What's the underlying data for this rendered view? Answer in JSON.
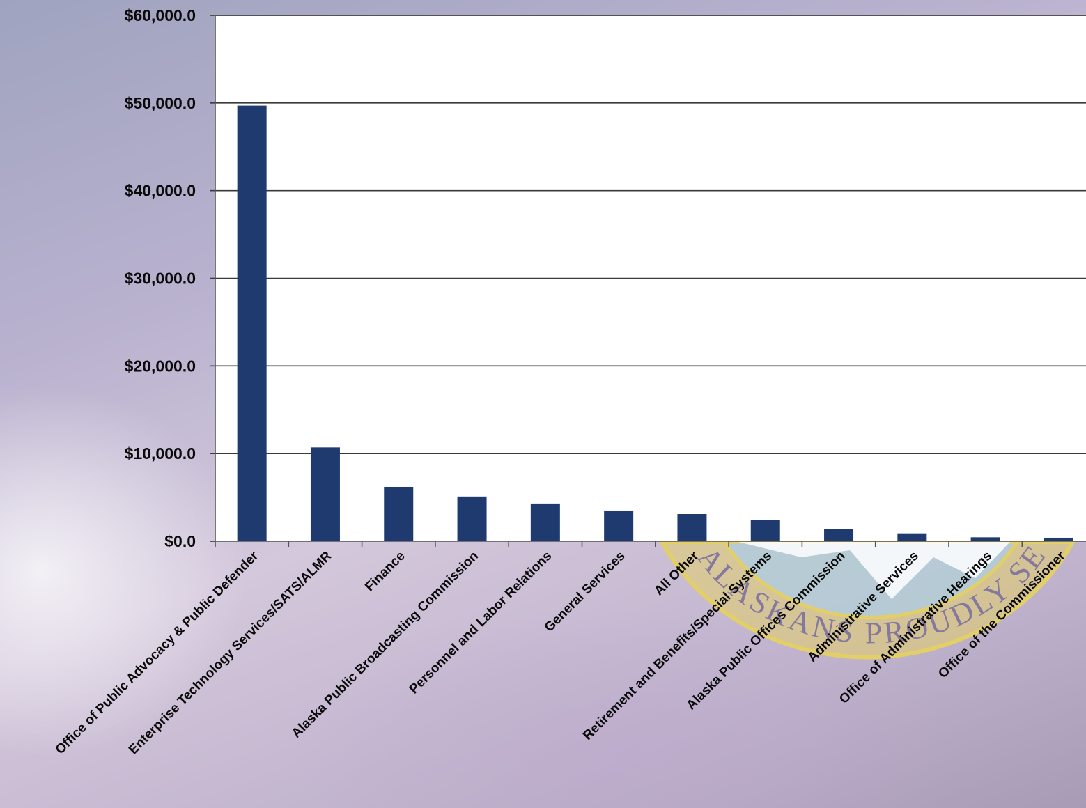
{
  "colors": {
    "bar": "#1f3a6e",
    "gridline": "#3a3a3a",
    "plot_background": "#ffffff",
    "seal_gold": "#e3cf68",
    "seal_text": "#6a5fa3"
  },
  "seal": {
    "text": "ALASKANS PROUDLY SERVING ALASKANS"
  },
  "chart_data": {
    "type": "bar",
    "title": "",
    "xlabel": "",
    "ylabel": "",
    "ylim": [
      0,
      60000
    ],
    "y_ticks": [
      0,
      10000,
      20000,
      30000,
      40000,
      50000,
      60000
    ],
    "y_tick_labels": [
      "$0.0",
      "$10,000.0",
      "$20,000.0",
      "$30,000.0",
      "$40,000.0",
      "$50,000.0",
      "$60,000.0"
    ],
    "grid": true,
    "legend": "none",
    "categories": [
      "Office of Public Advocacy & Public Defender",
      "Enterprise Technology Services/SATS/ALMR",
      "Finance",
      "Alaska Public Broadcasting Commission",
      "Personnel and Labor Relations",
      "General Services",
      "All Other",
      "Retirement and Benefits/Special Systems",
      "Alaska Public Offices Commission",
      "Administrative Services",
      "Office of Administrative Hearings",
      "Office of the Commissioner"
    ],
    "values": [
      49700,
      10700,
      6200,
      5100,
      4300,
      3500,
      3100,
      2400,
      1400,
      900,
      450,
      400
    ]
  }
}
